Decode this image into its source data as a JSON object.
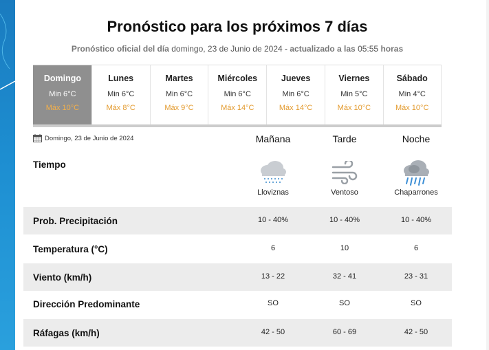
{
  "page": {
    "title": "Pronóstico para los próximos 7 días",
    "subtitle": {
      "prefix": "Pronóstico oficial del día",
      "date": "domingo, 23 de Junio de 2024",
      "mid": "- actualizado a las",
      "time": "05:55",
      "suffix": "horas"
    }
  },
  "days": [
    {
      "name": "Domingo",
      "min": "Min 6°C",
      "max": "Máx 10°C",
      "active": true
    },
    {
      "name": "Lunes",
      "min": "Min 6°C",
      "max": "Máx 8°C"
    },
    {
      "name": "Martes",
      "min": "Min 6°C",
      "max": "Máx 9°C"
    },
    {
      "name": "Miércoles",
      "min": "Min 6°C",
      "max": "Máx 14°C"
    },
    {
      "name": "Jueves",
      "min": "Min 6°C",
      "max": "Máx 14°C"
    },
    {
      "name": "Viernes",
      "min": "Min 5°C",
      "max": "Máx 10°C"
    },
    {
      "name": "Sábado",
      "min": "Min 4°C",
      "max": "Máx 10°C"
    }
  ],
  "detail": {
    "date": "Domingo, 23 de Junio de 2024",
    "columns": [
      "Mañana",
      "Tarde",
      "Noche"
    ],
    "weather_label": "Tiempo",
    "weather": [
      {
        "icon": "drizzle-icon",
        "text": "Lloviznas"
      },
      {
        "icon": "wind-icon",
        "text": "Ventoso"
      },
      {
        "icon": "showers-icon",
        "text": "Chaparrones"
      }
    ],
    "rows": [
      {
        "label": "Prob. Precipitación",
        "values": [
          "10 - 40%",
          "10 - 40%",
          "10 - 40%"
        ]
      },
      {
        "label": "Temperatura (°C)",
        "values": [
          "6",
          "10",
          "6"
        ]
      },
      {
        "label": "Viento (km/h)",
        "values": [
          "13 - 22",
          "32 - 41",
          "23 - 31"
        ]
      },
      {
        "label": "Dirección Predominante",
        "values": [
          "SO",
          "SO",
          "SO"
        ]
      },
      {
        "label": "Ráfagas (km/h)",
        "values": [
          "42 - 50",
          "60 - 69",
          "42 - 50"
        ]
      }
    ]
  },
  "colors": {
    "active_day": "#8f8f8f",
    "max_temp": "#e39a2d",
    "band": "#ececec",
    "sidebar": "#1d8ed1"
  }
}
